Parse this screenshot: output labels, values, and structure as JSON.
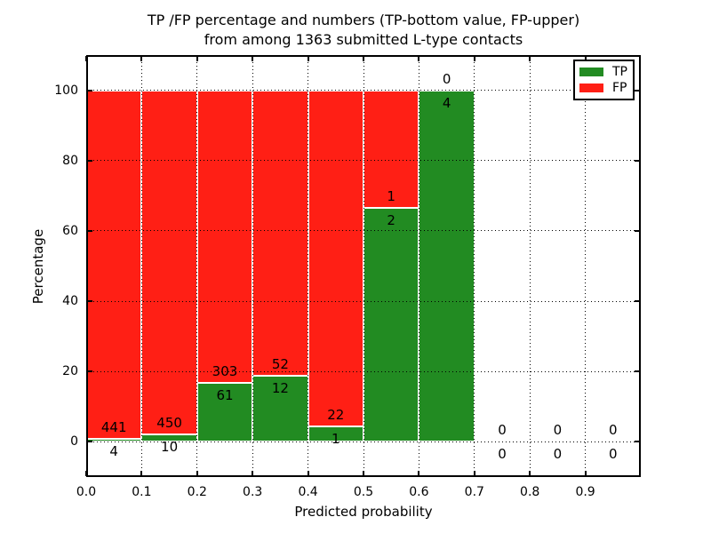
{
  "chart_data": {
    "type": "bar",
    "stacked": true,
    "title_line1": "TP /FP percentage and numbers (TP-bottom value, FP-upper)",
    "title_line2": "from among 1363 submitted L-type contacts",
    "xlabel": "Predicted probability",
    "ylabel": "Percentage",
    "xlim": [
      0.0,
      1.0
    ],
    "ylim": [
      -10,
      110
    ],
    "xticks": [
      "0.0",
      "0.1",
      "0.2",
      "0.3",
      "0.4",
      "0.5",
      "0.6",
      "0.7",
      "0.8",
      "0.9"
    ],
    "yticks": [
      0,
      20,
      40,
      60,
      80,
      100
    ],
    "grid": "dotted",
    "bin_width": 0.1,
    "bins": [
      {
        "x0": 0.0,
        "tp": 4,
        "fp": 441
      },
      {
        "x0": 0.1,
        "tp": 10,
        "fp": 450
      },
      {
        "x0": 0.2,
        "tp": 61,
        "fp": 303
      },
      {
        "x0": 0.3,
        "tp": 12,
        "fp": 52
      },
      {
        "x0": 0.4,
        "tp": 1,
        "fp": 22
      },
      {
        "x0": 0.5,
        "tp": 2,
        "fp": 1
      },
      {
        "x0": 0.6,
        "tp": 4,
        "fp": 0
      },
      {
        "x0": 0.7,
        "tp": 0,
        "fp": 0
      },
      {
        "x0": 0.8,
        "tp": 0,
        "fp": 0
      },
      {
        "x0": 0.9,
        "tp": 0,
        "fp": 0
      }
    ],
    "colors": {
      "tp": "#228b22",
      "fp": "#ff1f15"
    },
    "legend": {
      "position": "upper right",
      "entries": [
        {
          "series": "tp",
          "label": "TP"
        },
        {
          "series": "fp",
          "label": "FP"
        }
      ]
    }
  }
}
